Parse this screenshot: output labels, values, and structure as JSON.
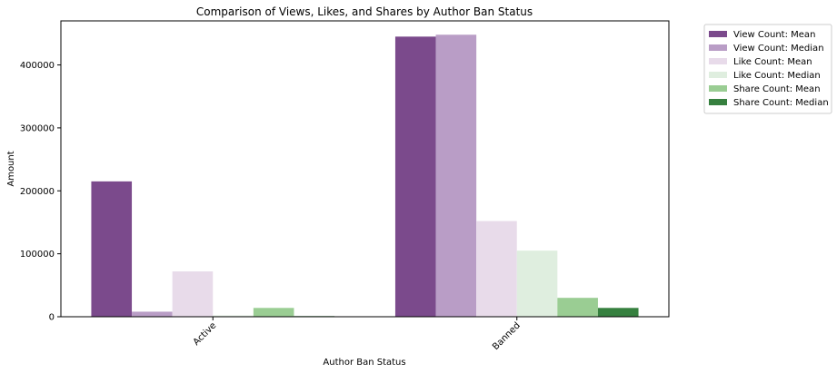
{
  "chart_data": {
    "type": "bar",
    "title": "Comparison of Views, Likes, and Shares by Author Ban Status",
    "xlabel": "Author Ban Status",
    "ylabel": "Amount",
    "categories": [
      "Active",
      "Banned"
    ],
    "ylim": [
      0,
      470000
    ],
    "yticks": [
      {
        "value": 0,
        "label": "0"
      },
      {
        "value": 100000,
        "label": "100000"
      },
      {
        "value": 200000,
        "label": "200000"
      },
      {
        "value": 300000,
        "label": "300000"
      },
      {
        "value": 400000,
        "label": "400000"
      }
    ],
    "grid": false,
    "legend_position": "outside-top-right",
    "xtick_rotation": 45,
    "series": [
      {
        "name": "View Count: Mean",
        "color": "#7b4a8c",
        "values": [
          215000,
          445000
        ]
      },
      {
        "name": "View Count: Median",
        "color": "#b99dc6",
        "values": [
          8000,
          448000
        ]
      },
      {
        "name": "Like Count: Mean",
        "color": "#e8dbea",
        "values": [
          72000,
          152000
        ]
      },
      {
        "name": "Like Count: Median",
        "color": "#dfeedf",
        "values": [
          2000,
          105000
        ]
      },
      {
        "name": "Share Count: Mean",
        "color": "#9acd93",
        "values": [
          14000,
          30000
        ]
      },
      {
        "name": "Share Count: Median",
        "color": "#36803f",
        "values": [
          1000,
          14000
        ]
      }
    ]
  }
}
